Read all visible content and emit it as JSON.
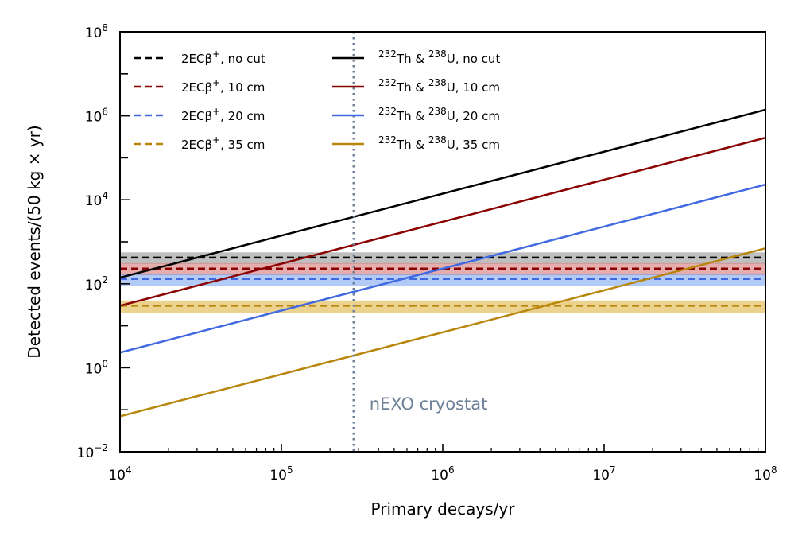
{
  "chart_data": {
    "type": "line",
    "xlabel": "Primary decays/yr",
    "ylabel": "Detected events/(50 kg × yr)",
    "xscale": "log",
    "yscale": "log",
    "xlim": [
      10000,
      100000000
    ],
    "ylim": [
      0.01,
      100000000
    ],
    "x_ticks": [
      {
        "base": "10",
        "exp": "4"
      },
      {
        "base": "10",
        "exp": "5"
      },
      {
        "base": "10",
        "exp": "6"
      },
      {
        "base": "10",
        "exp": "7"
      },
      {
        "base": "10",
        "exp": "8"
      }
    ],
    "y_ticks": [
      {
        "base": "10",
        "exp": "−2"
      },
      {
        "base": "10",
        "exp": "0"
      },
      {
        "base": "10",
        "exp": "2"
      },
      {
        "base": "10",
        "exp": "4"
      },
      {
        "base": "10",
        "exp": "6"
      },
      {
        "base": "10",
        "exp": "8"
      }
    ],
    "grid": false,
    "legend": "upper-left, two columns",
    "signal_series": [
      {
        "label_main": "2ECβ",
        "label_sup": "+",
        "label_rest": ", no cut",
        "color": "#000000",
        "value": 420,
        "band": [
          300,
          560
        ],
        "band_color": "#808080"
      },
      {
        "label_main": "2ECβ",
        "label_sup": "+",
        "label_rest": ", 10 cm",
        "color": "#8b0000",
        "value": 230,
        "band": [
          160,
          310
        ],
        "band_color": "#cd5c5c"
      },
      {
        "label_main": "2ECβ",
        "label_sup": "+",
        "label_rest": ", 20 cm",
        "color": "#4169e1",
        "value": 130,
        "band": [
          90,
          175
        ],
        "band_color": "#6495ed"
      },
      {
        "label_main": "2ECβ",
        "label_sup": "+",
        "label_rest": ", 35 cm",
        "color": "#b8860b",
        "value": 30,
        "band": [
          20,
          40
        ],
        "band_color": "#daa520"
      }
    ],
    "background_series": [
      {
        "label_sup1": "232",
        "label_mid": "Th & ",
        "label_sup2": "238",
        "label_rest": "U, no cut",
        "color": "#000000",
        "x": [
          10000,
          100000000
        ],
        "y": [
          140,
          1400000
        ]
      },
      {
        "label_sup1": "232",
        "label_mid": "Th & ",
        "label_sup2": "238",
        "label_rest": "U, 10 cm",
        "color": "#8b0000",
        "x": [
          10000,
          100000000
        ],
        "y": [
          30,
          300000
        ]
      },
      {
        "label_sup1": "232",
        "label_mid": "Th & ",
        "label_sup2": "238",
        "label_rest": "U, 20 cm",
        "color": "#4169e1",
        "x": [
          10000,
          100000000
        ],
        "y": [
          2.3,
          23000
        ]
      },
      {
        "label_sup1": "232",
        "label_mid": "Th & ",
        "label_sup2": "238",
        "label_rest": "U, 35 cm",
        "color": "#b8860b",
        "x": [
          10000,
          100000000
        ],
        "y": [
          0.07,
          700
        ]
      }
    ],
    "vline": {
      "x": 280000,
      "color": "#6e8196",
      "label": "nEXO cryostat"
    }
  }
}
